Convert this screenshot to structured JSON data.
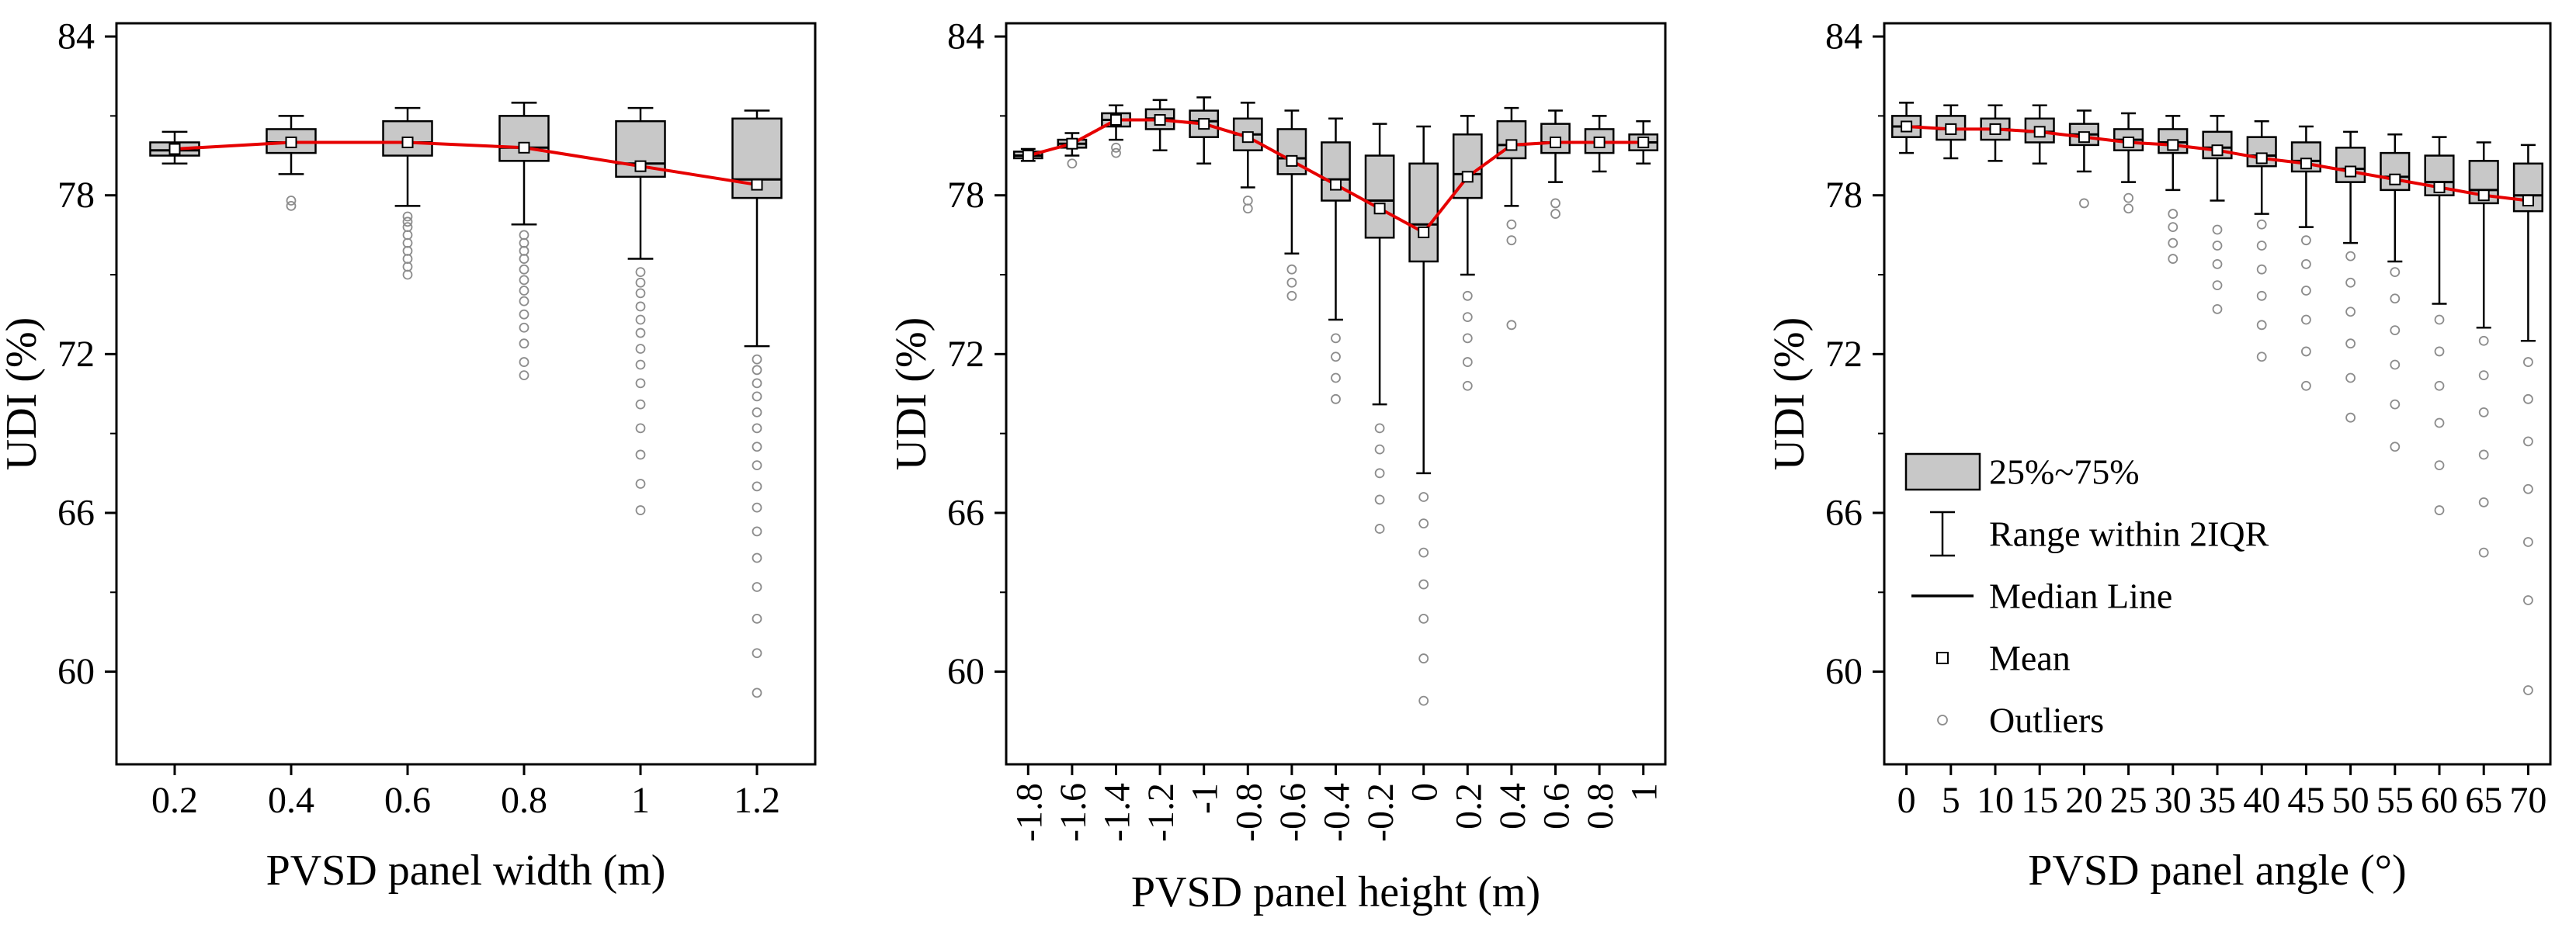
{
  "figure": {
    "background": "#ffffff",
    "ylabel": "UDI (%)"
  },
  "chart_data": [
    {
      "type": "box",
      "title": "",
      "xlabel": "PVSD panel width (m)",
      "ylabel": "UDI (%)",
      "ylim": [
        56.5,
        84.5
      ],
      "yticks": [
        60,
        66,
        72,
        78,
        84
      ],
      "yticks_minor": [
        63,
        69,
        75,
        81
      ],
      "x_tick_rotation": 0,
      "grid": false,
      "colors": {
        "box_fill": "#c8c8c8",
        "box_stroke": "#000000",
        "mean_line": "#e60000",
        "outlier": "#8c8c8c",
        "mean_marker_fill": "#ffffff"
      },
      "categories": [
        "0.2",
        "0.4",
        "0.6",
        "0.8",
        "1",
        "1.2"
      ],
      "boxes": [
        {
          "whisker_low": 79.2,
          "q1": 79.5,
          "median": 79.7,
          "q3": 80.0,
          "whisker_high": 80.4,
          "mean": 79.75,
          "outliers": []
        },
        {
          "whisker_low": 78.8,
          "q1": 79.6,
          "median": 80.0,
          "q3": 80.5,
          "whisker_high": 81.0,
          "mean": 80.0,
          "outliers": [
            77.8,
            77.6
          ]
        },
        {
          "whisker_low": 77.6,
          "q1": 79.5,
          "median": 80.0,
          "q3": 80.8,
          "whisker_high": 81.3,
          "mean": 80.0,
          "outliers": [
            77.2,
            77.0,
            76.8,
            76.5,
            76.2,
            75.9,
            75.6,
            75.3,
            75.0
          ]
        },
        {
          "whisker_low": 76.9,
          "q1": 79.3,
          "median": 79.8,
          "q3": 81.0,
          "whisker_high": 81.5,
          "mean": 79.8,
          "outliers": [
            76.5,
            76.2,
            75.9,
            75.6,
            75.2,
            74.8,
            74.4,
            74.0,
            73.5,
            73.0,
            72.4,
            71.7,
            71.2
          ]
        },
        {
          "whisker_low": 75.6,
          "q1": 78.7,
          "median": 79.2,
          "q3": 80.8,
          "whisker_high": 81.3,
          "mean": 79.1,
          "outliers": [
            75.1,
            74.7,
            74.3,
            73.8,
            73.3,
            72.8,
            72.2,
            71.6,
            70.9,
            70.1,
            69.2,
            68.2,
            67.1,
            66.1
          ]
        },
        {
          "whisker_low": 72.3,
          "q1": 77.9,
          "median": 78.6,
          "q3": 80.9,
          "whisker_high": 81.2,
          "mean": 78.4,
          "outliers": [
            71.8,
            71.4,
            70.9,
            70.4,
            69.8,
            69.2,
            68.5,
            67.8,
            67.0,
            66.2,
            65.3,
            64.3,
            63.2,
            62.0,
            60.7,
            59.2
          ]
        }
      ]
    },
    {
      "type": "box",
      "title": "",
      "xlabel": "PVSD panel height (m)",
      "ylabel": "UDI (%)",
      "ylim": [
        56.5,
        84.5
      ],
      "yticks": [
        60,
        66,
        72,
        78,
        84
      ],
      "yticks_minor": [
        63,
        69,
        75,
        81
      ],
      "x_tick_rotation": 90,
      "grid": false,
      "colors": {
        "box_fill": "#c8c8c8",
        "box_stroke": "#000000",
        "mean_line": "#e60000",
        "outlier": "#8c8c8c",
        "mean_marker_fill": "#ffffff"
      },
      "categories": [
        "-1.8",
        "-1.6",
        "-1.4",
        "-1.2",
        "-1",
        "-0.8",
        "-0.6",
        "-0.4",
        "-0.2",
        "0",
        "0.2",
        "0.4",
        "0.6",
        "0.8",
        "1"
      ],
      "boxes": [
        {
          "whisker_low": 79.3,
          "q1": 79.4,
          "median": 79.5,
          "q3": 79.65,
          "whisker_high": 79.75,
          "mean": 79.5,
          "outliers": []
        },
        {
          "whisker_low": 79.5,
          "q1": 79.8,
          "median": 79.95,
          "q3": 80.1,
          "whisker_high": 80.35,
          "mean": 79.95,
          "outliers": [
            79.2
          ]
        },
        {
          "whisker_low": 80.1,
          "q1": 80.6,
          "median": 80.85,
          "q3": 81.1,
          "whisker_high": 81.4,
          "mean": 80.85,
          "outliers": [
            79.8,
            79.6
          ]
        },
        {
          "whisker_low": 79.7,
          "q1": 80.5,
          "median": 80.9,
          "q3": 81.25,
          "whisker_high": 81.6,
          "mean": 80.85,
          "outliers": []
        },
        {
          "whisker_low": 79.2,
          "q1": 80.2,
          "median": 80.8,
          "q3": 81.2,
          "whisker_high": 81.7,
          "mean": 80.7,
          "outliers": []
        },
        {
          "whisker_low": 78.3,
          "q1": 79.7,
          "median": 80.3,
          "q3": 80.9,
          "whisker_high": 81.5,
          "mean": 80.2,
          "outliers": [
            77.8,
            77.5
          ]
        },
        {
          "whisker_low": 75.8,
          "q1": 78.8,
          "median": 79.4,
          "q3": 80.5,
          "whisker_high": 81.2,
          "mean": 79.3,
          "outliers": [
            75.2,
            74.7,
            74.2
          ]
        },
        {
          "whisker_low": 73.3,
          "q1": 77.8,
          "median": 78.6,
          "q3": 80.0,
          "whisker_high": 80.9,
          "mean": 78.4,
          "outliers": [
            72.6,
            71.9,
            71.1,
            70.3
          ]
        },
        {
          "whisker_low": 70.1,
          "q1": 76.4,
          "median": 77.8,
          "q3": 79.5,
          "whisker_high": 80.7,
          "mean": 77.5,
          "outliers": [
            69.2,
            68.4,
            67.5,
            66.5,
            65.4
          ]
        },
        {
          "whisker_low": 67.5,
          "q1": 75.5,
          "median": 76.9,
          "q3": 79.2,
          "whisker_high": 80.6,
          "mean": 76.6,
          "outliers": [
            66.6,
            65.6,
            64.5,
            63.3,
            62.0,
            60.5,
            58.9
          ]
        },
        {
          "whisker_low": 75.0,
          "q1": 77.9,
          "median": 78.8,
          "q3": 80.3,
          "whisker_high": 81.0,
          "mean": 78.7,
          "outliers": [
            74.2,
            73.4,
            72.6,
            71.7,
            70.8
          ]
        },
        {
          "whisker_low": 77.6,
          "q1": 79.4,
          "median": 79.9,
          "q3": 80.8,
          "whisker_high": 81.3,
          "mean": 79.9,
          "outliers": [
            76.9,
            76.3,
            73.1
          ]
        },
        {
          "whisker_low": 78.5,
          "q1": 79.6,
          "median": 80.0,
          "q3": 80.7,
          "whisker_high": 81.2,
          "mean": 80.0,
          "outliers": [
            77.7,
            77.3
          ]
        },
        {
          "whisker_low": 78.9,
          "q1": 79.6,
          "median": 80.0,
          "q3": 80.5,
          "whisker_high": 81.0,
          "mean": 80.0,
          "outliers": []
        },
        {
          "whisker_low": 79.2,
          "q1": 79.7,
          "median": 80.0,
          "q3": 80.3,
          "whisker_high": 80.8,
          "mean": 80.0,
          "outliers": []
        }
      ]
    },
    {
      "type": "box",
      "title": "",
      "xlabel": "PVSD panel angle (°)",
      "ylabel": "UDI (%)",
      "ylim": [
        56.5,
        84.5
      ],
      "yticks": [
        60,
        66,
        72,
        78,
        84
      ],
      "yticks_minor": [
        63,
        69,
        75,
        81
      ],
      "x_tick_rotation": 0,
      "grid": false,
      "colors": {
        "box_fill": "#c8c8c8",
        "box_stroke": "#000000",
        "mean_line": "#e60000",
        "outlier": "#8c8c8c",
        "mean_marker_fill": "#ffffff"
      },
      "categories": [
        "0",
        "5",
        "10",
        "15",
        "20",
        "25",
        "30",
        "35",
        "40",
        "45",
        "50",
        "55",
        "60",
        "65",
        "70"
      ],
      "boxes": [
        {
          "whisker_low": 79.6,
          "q1": 80.2,
          "median": 80.6,
          "q3": 81.0,
          "whisker_high": 81.5,
          "mean": 80.6,
          "outliers": []
        },
        {
          "whisker_low": 79.4,
          "q1": 80.1,
          "median": 80.5,
          "q3": 81.0,
          "whisker_high": 81.4,
          "mean": 80.5,
          "outliers": []
        },
        {
          "whisker_low": 79.3,
          "q1": 80.1,
          "median": 80.5,
          "q3": 80.9,
          "whisker_high": 81.4,
          "mean": 80.5,
          "outliers": []
        },
        {
          "whisker_low": 79.2,
          "q1": 80.0,
          "median": 80.4,
          "q3": 80.9,
          "whisker_high": 81.4,
          "mean": 80.4,
          "outliers": []
        },
        {
          "whisker_low": 78.9,
          "q1": 79.9,
          "median": 80.3,
          "q3": 80.7,
          "whisker_high": 81.2,
          "mean": 80.2,
          "outliers": [
            77.7
          ]
        },
        {
          "whisker_low": 78.5,
          "q1": 79.7,
          "median": 80.1,
          "q3": 80.5,
          "whisker_high": 81.1,
          "mean": 80.0,
          "outliers": [
            77.9,
            77.5
          ]
        },
        {
          "whisker_low": 78.2,
          "q1": 79.6,
          "median": 80.0,
          "q3": 80.5,
          "whisker_high": 81.0,
          "mean": 79.9,
          "outliers": [
            77.3,
            76.8,
            76.2,
            75.6
          ]
        },
        {
          "whisker_low": 77.8,
          "q1": 79.4,
          "median": 79.8,
          "q3": 80.4,
          "whisker_high": 81.0,
          "mean": 79.7,
          "outliers": [
            76.7,
            76.1,
            75.4,
            74.6,
            73.7
          ]
        },
        {
          "whisker_low": 77.3,
          "q1": 79.1,
          "median": 79.5,
          "q3": 80.2,
          "whisker_high": 80.8,
          "mean": 79.4,
          "outliers": [
            76.9,
            76.1,
            75.2,
            74.2,
            73.1,
            71.9
          ]
        },
        {
          "whisker_low": 76.8,
          "q1": 78.9,
          "median": 79.3,
          "q3": 80.0,
          "whisker_high": 80.6,
          "mean": 79.2,
          "outliers": [
            76.3,
            75.4,
            74.4,
            73.3,
            72.1,
            70.8
          ]
        },
        {
          "whisker_low": 76.2,
          "q1": 78.5,
          "median": 79.0,
          "q3": 79.8,
          "whisker_high": 80.4,
          "mean": 78.9,
          "outliers": [
            75.7,
            74.7,
            73.6,
            72.4,
            71.1,
            69.6
          ]
        },
        {
          "whisker_low": 75.5,
          "q1": 78.2,
          "median": 78.7,
          "q3": 79.6,
          "whisker_high": 80.3,
          "mean": 78.6,
          "outliers": [
            75.1,
            74.1,
            72.9,
            71.6,
            70.1,
            68.5
          ]
        },
        {
          "whisker_low": 73.9,
          "q1": 78.0,
          "median": 78.5,
          "q3": 79.5,
          "whisker_high": 80.2,
          "mean": 78.3,
          "outliers": [
            73.3,
            72.1,
            70.8,
            69.4,
            67.8,
            66.1
          ]
        },
        {
          "whisker_low": 73.0,
          "q1": 77.7,
          "median": 78.2,
          "q3": 79.3,
          "whisker_high": 80.0,
          "mean": 78.0,
          "outliers": [
            72.5,
            71.2,
            69.8,
            68.2,
            66.4,
            64.5
          ]
        },
        {
          "whisker_low": 72.5,
          "q1": 77.4,
          "median": 78.0,
          "q3": 79.2,
          "whisker_high": 79.9,
          "mean": 77.8,
          "outliers": [
            71.7,
            70.3,
            68.7,
            66.9,
            64.9,
            62.7,
            59.3
          ]
        }
      ],
      "legend": {
        "position": "inside-left",
        "items": [
          {
            "icon": "box",
            "label": "25%~75%"
          },
          {
            "icon": "range",
            "label": "Range within 2IQR"
          },
          {
            "icon": "line",
            "label": "Median Line"
          },
          {
            "icon": "square",
            "label": "Mean"
          },
          {
            "icon": "circle",
            "label": "Outliers"
          }
        ]
      }
    }
  ]
}
